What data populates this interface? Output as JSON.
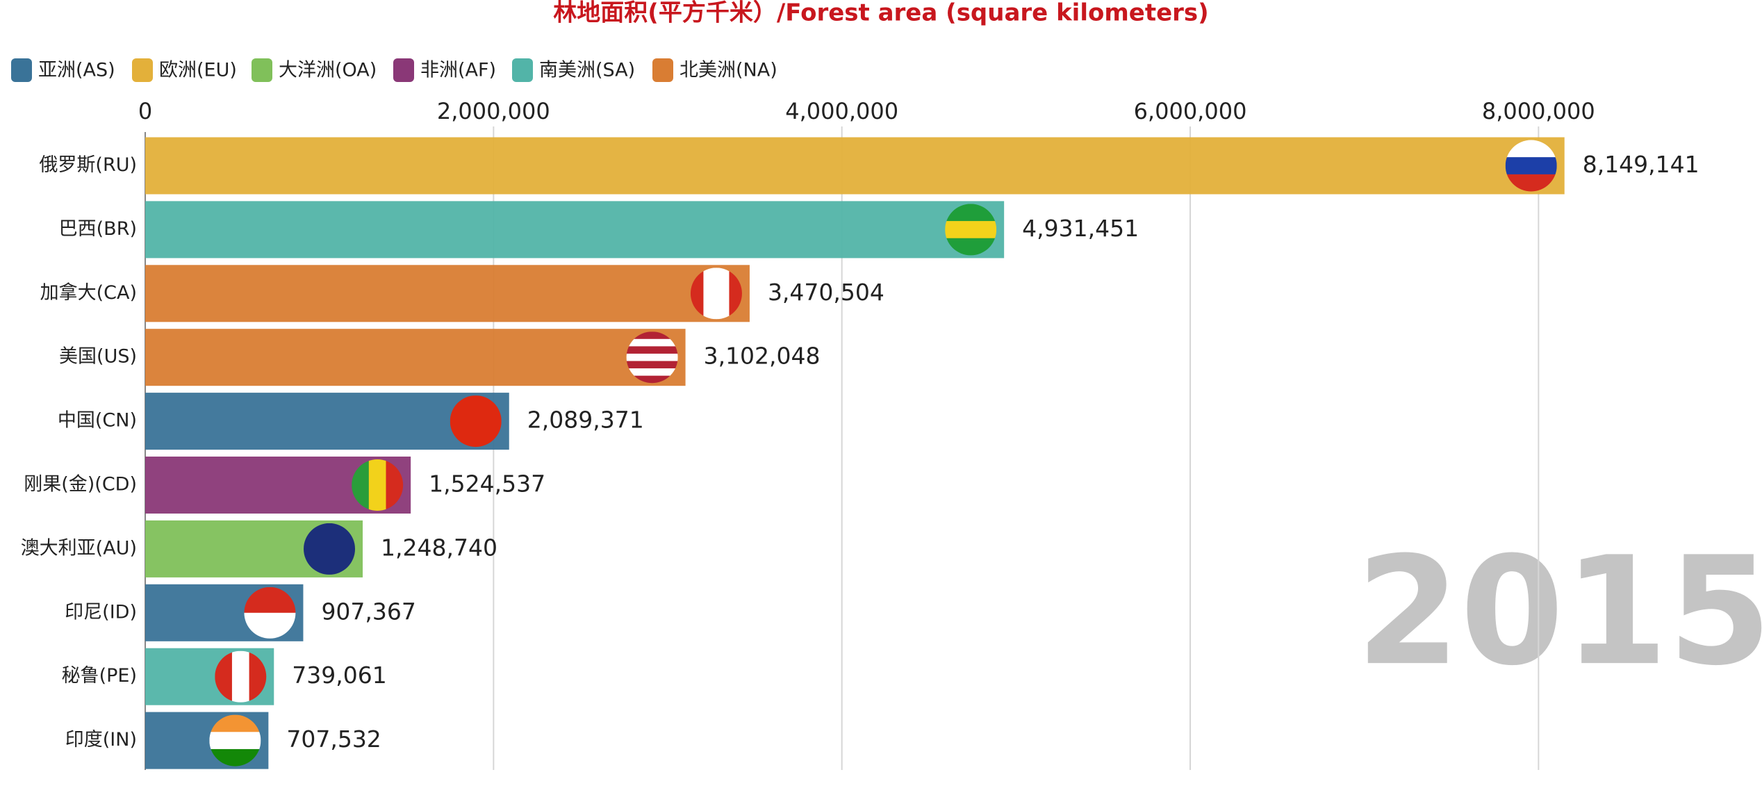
{
  "chart_data": {
    "type": "hbar",
    "title": "林地面积(平方千米）/Forest area (square kilometers)",
    "legend": [
      {
        "name": "亚洲(AS)",
        "color": "#3a7398"
      },
      {
        "name": "欧洲(EU)",
        "color": "#e3b03a"
      },
      {
        "name": "大洋洲(OA)",
        "color": "#80c05a"
      },
      {
        "name": "非洲(AF)",
        "color": "#8a3877"
      },
      {
        "name": "南美洲(SA)",
        "color": "#52b4a8"
      },
      {
        "name": "北美洲(NA)",
        "color": "#d97d33"
      }
    ],
    "categories": [
      "俄罗斯(RU)",
      "巴西(BR)",
      "加拿大(CA)",
      "美国(US)",
      "中国(CN)",
      "刚果(金)(CD)",
      "澳大利亚(AU)",
      "印尼(ID)",
      "秘鲁(PE)",
      "印度(IN)"
    ],
    "values": [
      8149141,
      4931451,
      3470504,
      3102048,
      2089371,
      1524537,
      1248740,
      907367,
      739061,
      707532
    ],
    "value_labels": [
      "8,149,141",
      "4,931,451",
      "3,470,504",
      "3,102,048",
      "2,089,371",
      "1,524,537",
      "1,248,740",
      "907,367",
      "739,061",
      "707,532"
    ],
    "bar_colors": [
      "#e3b03a",
      "#52b4a8",
      "#d97d33",
      "#d97d33",
      "#3a7398",
      "#8a3877",
      "#80c05a",
      "#3a7398",
      "#52b4a8",
      "#3a7398"
    ],
    "xlim": [
      0,
      9000000
    ],
    "xticks": [
      0,
      {
        "value": 2000000,
        "label": "2,000,000"
      },
      {
        "value": 4000000,
        "label": "4,000,000"
      },
      {
        "value": 6000000,
        "label": "6,000,000"
      },
      {
        "value": 8000000,
        "label": "8,000,000"
      }
    ],
    "grid": true,
    "annotation": "2015"
  }
}
